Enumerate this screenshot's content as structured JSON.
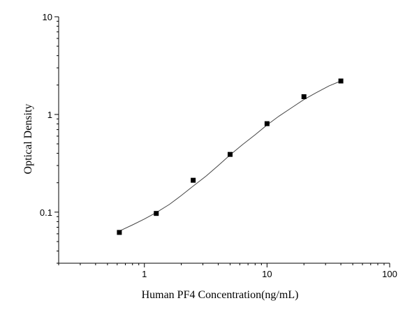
{
  "chart_data": {
    "type": "scatter",
    "title": "",
    "xlabel": "Human PF4  Concentration(ng/mL)",
    "ylabel": "Optical Density",
    "xscale": "log",
    "yscale": "log",
    "xlim": [
      0.2,
      100
    ],
    "ylim": [
      0.03,
      10
    ],
    "x_ticks": [
      {
        "value": 1,
        "label": "1"
      },
      {
        "value": 10,
        "label": "10"
      },
      {
        "value": 100,
        "label": "100"
      }
    ],
    "y_ticks": [
      {
        "value": 0.1,
        "label": "0.1"
      },
      {
        "value": 1,
        "label": "1"
      },
      {
        "value": 10,
        "label": "10"
      }
    ],
    "grid": false,
    "legend": "none",
    "series": [
      {
        "marker": "square",
        "color": "#000000",
        "x": [
          0.625,
          1.25,
          2.5,
          5,
          10,
          20,
          40
        ],
        "y": [
          0.062,
          0.097,
          0.212,
          0.39,
          0.805,
          1.52,
          2.2
        ]
      }
    ],
    "fit_curve": {
      "color": "#444444",
      "x": [
        0.625,
        0.8,
        1,
        1.25,
        1.6,
        2,
        2.5,
        3.2,
        4,
        5,
        6.3,
        8,
        10,
        12.5,
        16,
        20,
        25,
        32,
        40
      ],
      "y": [
        0.064,
        0.074,
        0.085,
        0.099,
        0.12,
        0.148,
        0.185,
        0.235,
        0.3,
        0.385,
        0.49,
        0.62,
        0.78,
        0.96,
        1.18,
        1.42,
        1.66,
        1.96,
        2.2
      ]
    }
  }
}
